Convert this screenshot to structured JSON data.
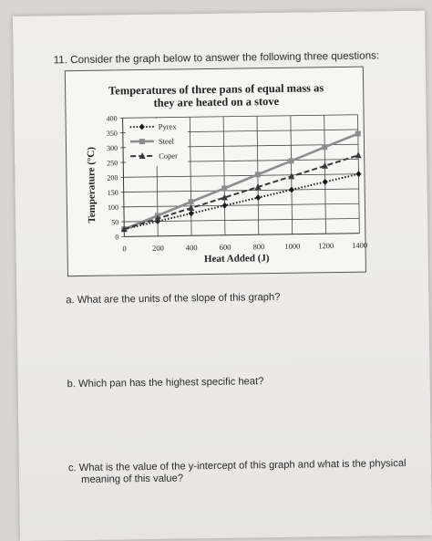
{
  "question": {
    "header": "11. Consider the graph below to answer the following three questions:",
    "items": [
      {
        "label": "a. What are the units of the slope of this graph?"
      },
      {
        "label": "b. Which pan has the highest specific heat?"
      },
      {
        "label_line1": "c. What is the value of the y-intercept of this graph and what is the physical",
        "label_line2": "meaning of this value?"
      }
    ]
  },
  "chart_data": {
    "type": "line",
    "title": "Temperatures of three pans of equal mass as they are heated on a stove",
    "title_line1": "Temperatures of three pans of equal mass as",
    "title_line2": "they are heated on a stove",
    "xlabel": "Heat Added (J)",
    "ylabel": "Temperature (°C)",
    "x_ticks": [
      0,
      200,
      400,
      600,
      800,
      1000,
      1200,
      1400
    ],
    "y_ticks": [
      0,
      50,
      100,
      150,
      200,
      250,
      300,
      350,
      400
    ],
    "xlim": [
      0,
      1400
    ],
    "ylim": [
      0,
      400
    ],
    "grid": true,
    "legend_position": "top-left",
    "x": [
      0,
      200,
      400,
      600,
      800,
      1000,
      1200,
      1400
    ],
    "series": [
      {
        "name": "Pyrex",
        "style": "dotted",
        "marker": "diamond",
        "values": [
          25,
          50,
          75,
          100,
          125,
          150,
          175,
          200
        ]
      },
      {
        "name": "Steel",
        "style": "solid",
        "marker": "square",
        "values": [
          25,
          69,
          114,
          158,
          203,
          247,
          292,
          336
        ]
      },
      {
        "name": "Coper",
        "style": "dashed",
        "marker": "triangle",
        "values": [
          25,
          59,
          93,
          127,
          161,
          195,
          229,
          263
        ]
      }
    ],
    "colors": {
      "Pyrex": "#1c1c1c",
      "Steel": "#8d8d8d",
      "Coper": "#3a3a3a"
    }
  }
}
